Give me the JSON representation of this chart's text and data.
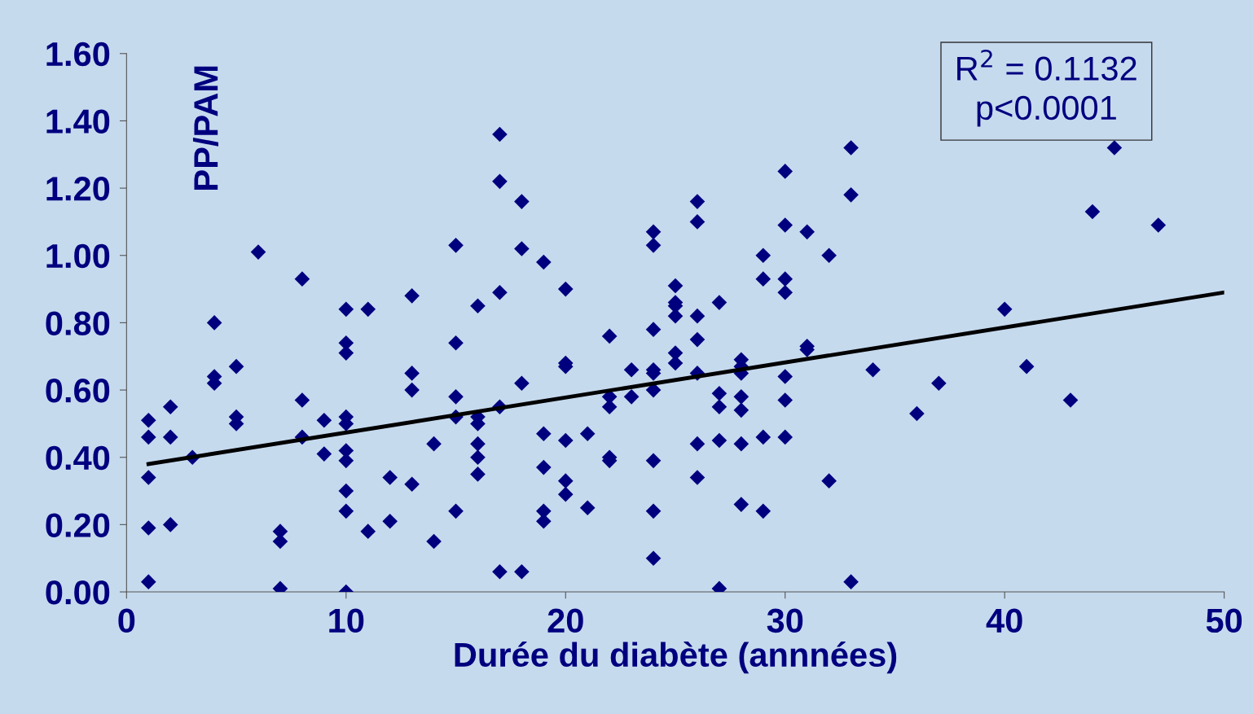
{
  "chart_data": {
    "type": "scatter",
    "xlabel": "Durée du diabète (annnées)",
    "ylabel": "PP/PAM",
    "annotations": [
      "R$^{2}$ = 0.1132",
      "p<0.0001"
    ],
    "xlim": [
      0,
      50
    ],
    "xticks": [
      0,
      10,
      20,
      30,
      40,
      50
    ],
    "ylim": [
      0,
      1.6
    ],
    "yticks": [
      {
        "value": 0,
        "label": "0.00"
      },
      {
        "value": 0.2,
        "label": "0.20"
      },
      {
        "value": 0.4,
        "label": "0.40"
      },
      {
        "value": 0.6,
        "label": "0.60"
      },
      {
        "value": 0.8,
        "label": "0.80"
      },
      {
        "value": 1.0,
        "label": "1.00"
      },
      {
        "value": 1.2,
        "label": "1.20"
      },
      {
        "value": 1.4,
        "label": "1.40"
      },
      {
        "value": 1.6,
        "label": "1.60"
      }
    ],
    "grid": false,
    "marker": "diamond",
    "series": [
      {
        "color": "#00007f",
        "x": [
          1,
          1,
          1,
          1,
          1,
          2,
          2,
          2,
          3,
          4,
          4,
          4,
          5,
          5,
          5,
          6,
          7,
          7,
          7,
          8,
          8,
          8,
          9,
          9,
          10,
          10,
          10,
          10,
          10,
          10,
          10,
          10,
          10,
          10,
          11,
          11,
          12,
          12,
          13,
          13,
          13,
          13,
          14,
          14,
          15,
          15,
          15,
          15,
          15,
          16,
          16,
          16,
          16,
          16,
          16,
          17,
          17,
          17,
          17,
          17,
          18,
          18,
          18,
          18,
          19,
          19,
          19,
          19,
          19,
          20,
          20,
          20,
          20,
          20,
          20,
          21,
          21,
          22,
          22,
          22,
          22,
          22,
          23,
          23,
          24,
          24,
          24,
          24,
          24,
          24,
          24,
          24,
          24,
          25,
          25,
          25,
          25,
          25,
          25,
          26,
          26,
          26,
          26,
          26,
          26,
          26,
          27,
          27,
          27,
          27,
          27,
          28,
          28,
          28,
          28,
          28,
          28,
          28,
          29,
          29,
          29,
          29,
          30,
          30,
          30,
          30,
          30,
          30,
          30,
          31,
          31,
          31,
          32,
          32,
          33,
          33,
          33,
          34,
          36,
          37,
          40,
          41,
          43,
          44,
          45,
          47
        ],
        "values": [
          0.51,
          0.46,
          0.34,
          0.19,
          0.03,
          0.55,
          0.46,
          0.2,
          0.4,
          0.8,
          0.64,
          0.62,
          0.67,
          0.52,
          0.5,
          1.01,
          0.18,
          0.15,
          0.01,
          0.93,
          0.57,
          0.46,
          0.51,
          0.41,
          0.84,
          0.74,
          0.71,
          0.52,
          0.5,
          0.42,
          0.39,
          0.3,
          0.24,
          0.0,
          0.84,
          0.18,
          0.34,
          0.21,
          0.88,
          0.65,
          0.6,
          0.32,
          0.44,
          0.15,
          1.03,
          0.74,
          0.58,
          0.52,
          0.24,
          0.85,
          0.52,
          0.5,
          0.44,
          0.4,
          0.35,
          1.36,
          1.22,
          0.89,
          0.55,
          0.06,
          1.16,
          1.02,
          0.62,
          0.06,
          0.98,
          0.47,
          0.37,
          0.24,
          0.21,
          0.9,
          0.68,
          0.67,
          0.45,
          0.33,
          0.29,
          0.47,
          0.25,
          0.76,
          0.58,
          0.55,
          0.4,
          0.39,
          0.66,
          0.58,
          1.07,
          1.03,
          0.78,
          0.66,
          0.65,
          0.6,
          0.39,
          0.24,
          0.1,
          0.91,
          0.86,
          0.85,
          0.82,
          0.71,
          0.68,
          1.16,
          1.1,
          0.82,
          0.75,
          0.65,
          0.44,
          0.34,
          0.86,
          0.59,
          0.55,
          0.45,
          0.01,
          0.69,
          0.67,
          0.65,
          0.58,
          0.54,
          0.44,
          0.26,
          1.0,
          0.93,
          0.46,
          0.24,
          1.25,
          1.09,
          0.93,
          0.89,
          0.64,
          0.57,
          0.46,
          1.07,
          0.73,
          0.72,
          1.0,
          0.33,
          1.32,
          1.18,
          0.03,
          0.66,
          0.53,
          0.62,
          0.84,
          0.67,
          0.57,
          1.13,
          1.32,
          1.09
        ]
      },
      {
        "type": "line",
        "color": "#000000",
        "marker": "none",
        "line_style": "solid",
        "x": [
          1,
          50
        ],
        "values": [
          0.38,
          0.89
        ]
      }
    ]
  }
}
